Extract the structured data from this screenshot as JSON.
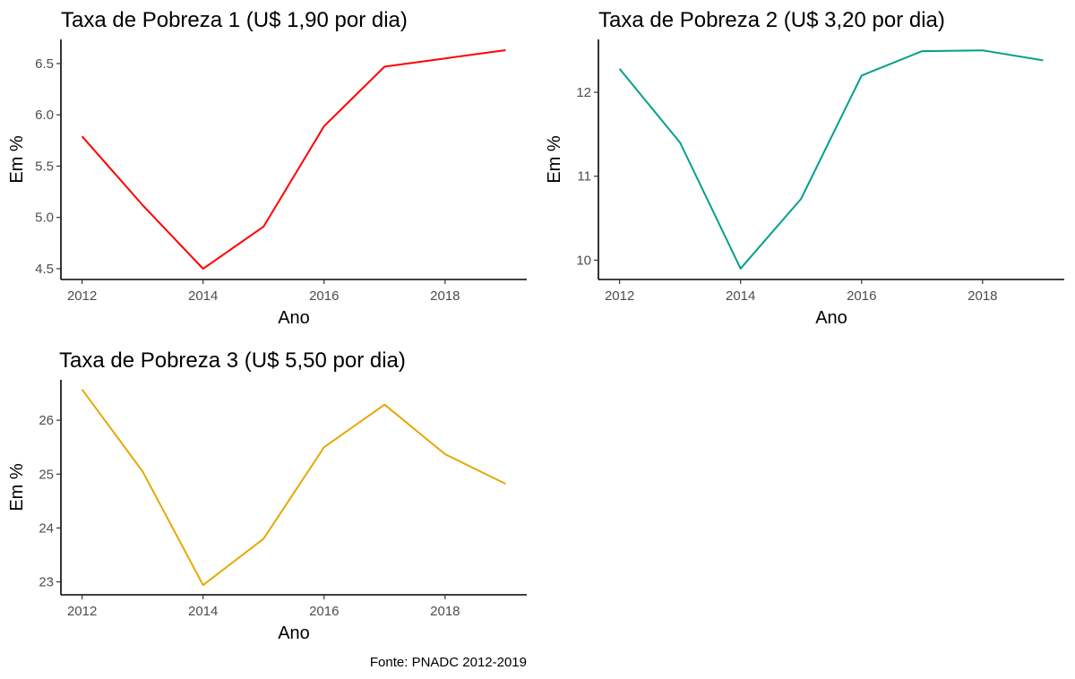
{
  "caption": "Fonte: PNADC 2012-2019",
  "chart_data": [
    {
      "type": "line",
      "title": "Taxa de Pobreza 1 (U$ 1,90 por dia)",
      "xlabel": "Ano",
      "ylabel": "Em %",
      "color": "#ff0000",
      "x": [
        2012,
        2013,
        2014,
        2015,
        2016,
        2017,
        2018,
        2019
      ],
      "values": [
        5.79,
        5.12,
        4.5,
        4.91,
        5.89,
        6.47,
        6.55,
        6.63
      ],
      "xticks": [
        2012,
        2014,
        2016,
        2018
      ],
      "xtick_labels": [
        "2012",
        "2014",
        "2016",
        "2018"
      ],
      "yticks": [
        4.5,
        5.0,
        5.5,
        6.0,
        6.5
      ],
      "ytick_labels": [
        "4.5",
        "5.0",
        "5.5",
        "6.0",
        "6.5"
      ],
      "xlim": [
        2011.65,
        2019.35
      ],
      "ylim": [
        4.395,
        6.735
      ],
      "grid": false
    },
    {
      "type": "line",
      "title": "Taxa de Pobreza 2 (U$ 3,20 por dia)",
      "xlabel": "Ano",
      "ylabel": "Em %",
      "color": "#00a08a",
      "x": [
        2012,
        2013,
        2014,
        2015,
        2016,
        2017,
        2018,
        2019
      ],
      "values": [
        12.28,
        11.4,
        9.9,
        10.73,
        12.2,
        12.49,
        12.5,
        12.38
      ],
      "xticks": [
        2012,
        2014,
        2016,
        2018
      ],
      "xtick_labels": [
        "2012",
        "2014",
        "2016",
        "2018"
      ],
      "yticks": [
        10,
        11,
        12
      ],
      "ytick_labels": [
        "10",
        "11",
        "12"
      ],
      "xlim": [
        2011.65,
        2019.35
      ],
      "ylim": [
        9.77,
        12.63
      ],
      "grid": false
    },
    {
      "type": "line",
      "title": "Taxa de Pobreza 3 (U$ 5,50 por dia)",
      "xlabel": "Ano",
      "ylabel": "Em %",
      "color": "#e6a800",
      "x": [
        2012,
        2013,
        2014,
        2015,
        2016,
        2017,
        2018,
        2019
      ],
      "values": [
        26.57,
        25.05,
        22.94,
        23.8,
        25.5,
        26.29,
        25.37,
        24.82
      ],
      "xticks": [
        2012,
        2014,
        2016,
        2018
      ],
      "xtick_labels": [
        "2012",
        "2014",
        "2016",
        "2018"
      ],
      "yticks": [
        23,
        24,
        25,
        26
      ],
      "ytick_labels": [
        "23",
        "24",
        "25",
        "26"
      ],
      "xlim": [
        2011.65,
        2019.35
      ],
      "ylim": [
        22.76,
        26.75
      ],
      "grid": false
    }
  ]
}
